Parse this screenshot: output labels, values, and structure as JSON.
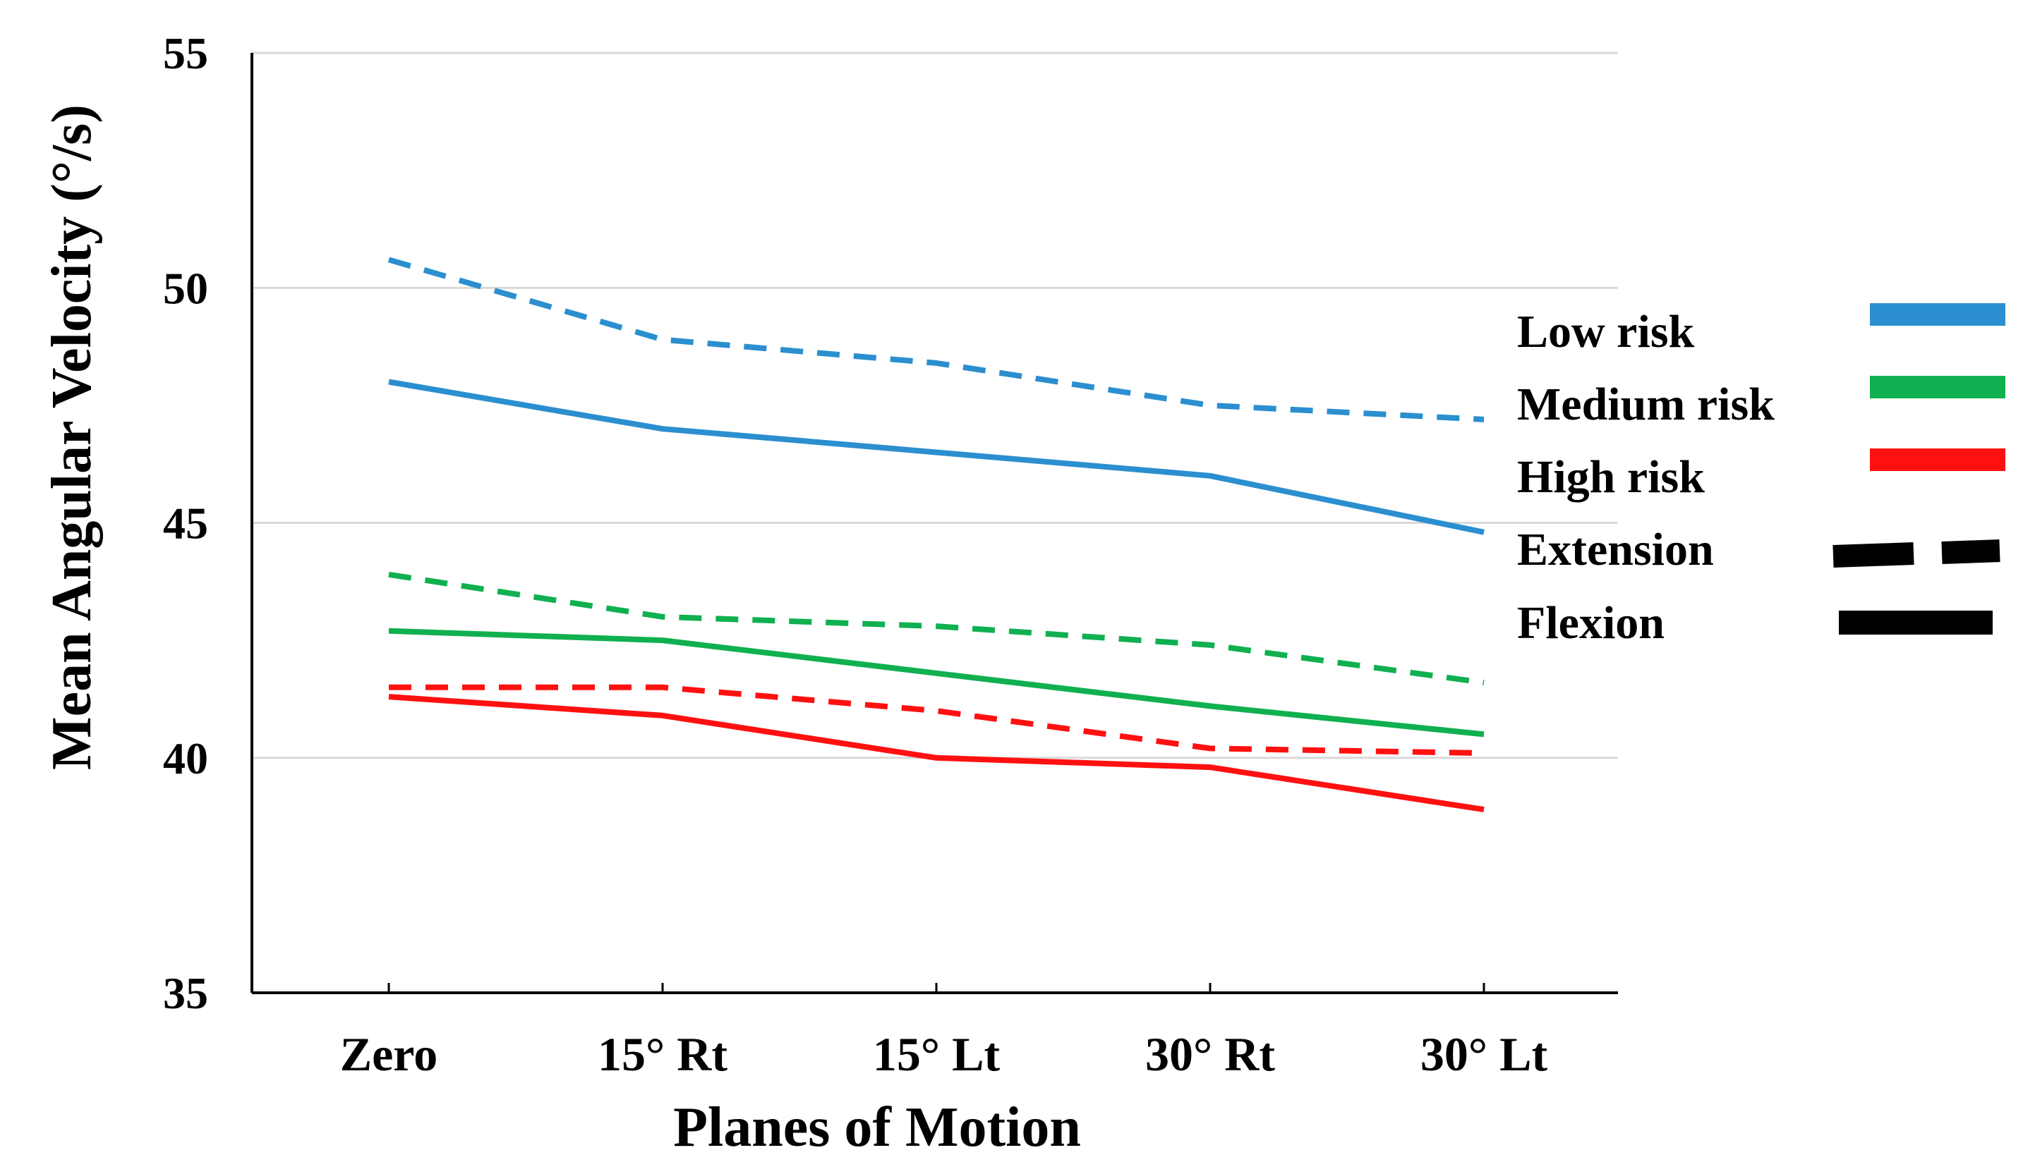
{
  "chart_data": {
    "type": "line",
    "title": "",
    "xlabel": "Planes of Motion",
    "ylabel": "Mean Angular Velocity (°/s)",
    "ylim": [
      35,
      55
    ],
    "yticks": [
      35,
      40,
      45,
      50,
      55
    ],
    "grid": "horizontal",
    "legend_position": "right",
    "categories": [
      "Zero",
      "15° Rt",
      "15° Lt",
      "30° Rt",
      "30° Lt"
    ],
    "series": [
      {
        "name": "Low risk Extension",
        "group": "Low risk",
        "motion": "Extension",
        "color": "#2b8fcf",
        "style": "dashed",
        "values": [
          50.6,
          48.9,
          48.4,
          47.5,
          47.2
        ]
      },
      {
        "name": "Low risk Flexion",
        "group": "Low risk",
        "motion": "Flexion",
        "color": "#2b8fcf",
        "style": "solid",
        "values": [
          48.0,
          47.0,
          46.5,
          46.0,
          44.8
        ]
      },
      {
        "name": "Medium risk Extension",
        "group": "Medium risk",
        "motion": "Extension",
        "color": "#10b050",
        "style": "dashed",
        "values": [
          43.9,
          43.0,
          42.8,
          42.4,
          41.6
        ]
      },
      {
        "name": "Medium risk Flexion",
        "group": "Medium risk",
        "motion": "Flexion",
        "color": "#10b050",
        "style": "solid",
        "values": [
          42.7,
          42.5,
          41.8,
          41.1,
          40.5
        ]
      },
      {
        "name": "High risk Extension",
        "group": "High risk",
        "motion": "Extension",
        "color": "#ff1010",
        "style": "dashed",
        "values": [
          41.5,
          41.5,
          41.0,
          40.2,
          40.1
        ]
      },
      {
        "name": "High risk Flexion",
        "group": "High risk",
        "motion": "Flexion",
        "color": "#ff1010",
        "style": "solid",
        "values": [
          41.3,
          40.9,
          40.0,
          39.8,
          38.9
        ]
      }
    ],
    "legend": [
      {
        "label": "Low risk",
        "color": "#2b8fcf",
        "style": "solid"
      },
      {
        "label": "Medium risk",
        "color": "#10b050",
        "style": "solid"
      },
      {
        "label": "High risk",
        "color": "#ff1010",
        "style": "solid"
      },
      {
        "label": "Extension",
        "color": "#000000",
        "style": "dashed"
      },
      {
        "label": "Flexion",
        "color": "#000000",
        "style": "solid"
      }
    ]
  }
}
